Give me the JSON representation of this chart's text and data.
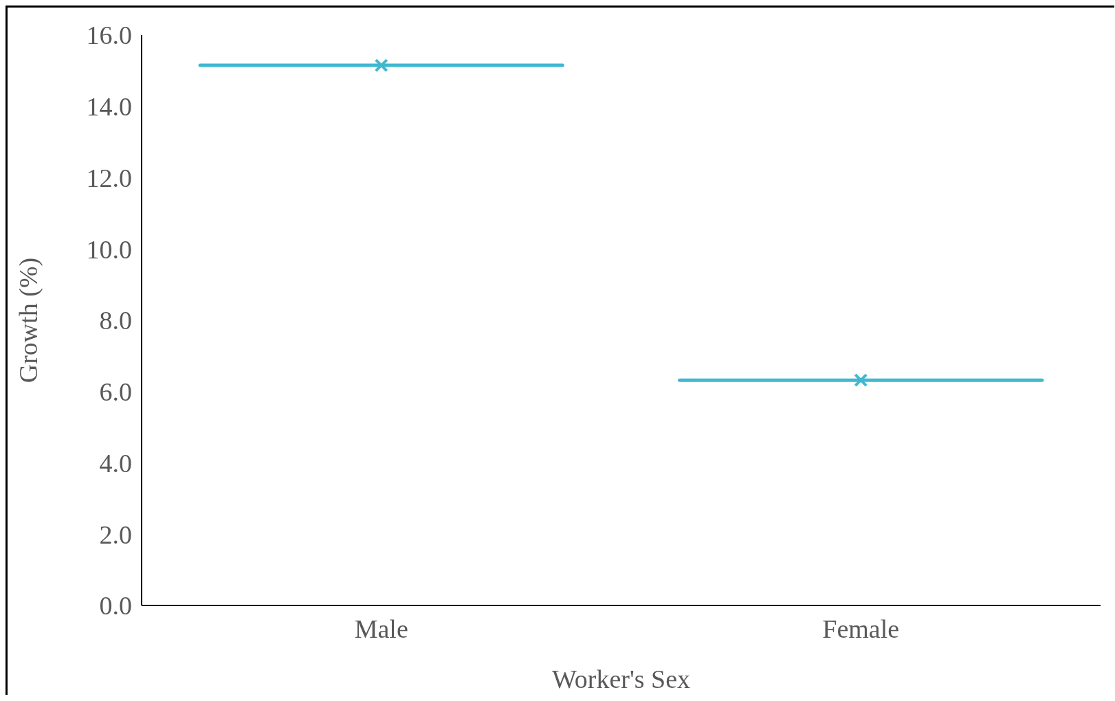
{
  "chart_data": {
    "type": "box",
    "xlabel": "Worker's Sex",
    "ylabel": "Growth (%)",
    "categories": [
      "Male",
      "Female"
    ],
    "color": "#3fb8d0",
    "marker": "cross",
    "boxes": [
      {
        "low": 15.15,
        "q1": 15.15,
        "median": 15.15,
        "q3": 15.15,
        "high": 15.15,
        "mean": 15.15
      },
      {
        "low": 6.32,
        "q1": 6.32,
        "median": 6.32,
        "q3": 6.32,
        "high": 6.32,
        "mean": 6.32
      }
    ],
    "ylim": [
      0,
      16
    ],
    "yticks": [
      {
        "value": 0,
        "label": "0.0"
      },
      {
        "value": 2,
        "label": "2.0"
      },
      {
        "value": 4,
        "label": "4.0"
      },
      {
        "value": 6,
        "label": "6.0"
      },
      {
        "value": 8,
        "label": "8.0"
      },
      {
        "value": 10,
        "label": "10.0"
      },
      {
        "value": 12,
        "label": "12.0"
      },
      {
        "value": 14,
        "label": "14.0"
      },
      {
        "value": 16,
        "label": "16.0"
      }
    ]
  }
}
